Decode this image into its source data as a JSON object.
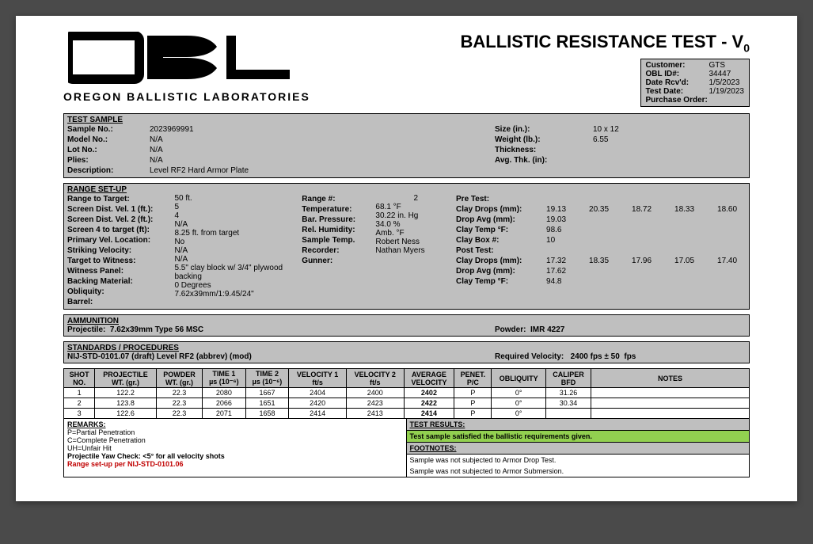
{
  "company": {
    "logo_name": "OBL",
    "logo_sub": "OREGON BALLISTIC LABORATORIES"
  },
  "title": "BALLISTIC RESISTANCE TEST - V",
  "title_sub": "0",
  "meta": {
    "customer_lbl": "Customer:",
    "customer": "GTS",
    "obl_id_lbl": "OBL ID#:",
    "obl_id": "34447",
    "date_rcvd_lbl": "Date Rcv'd:",
    "date_rcvd": "1/5/2023",
    "test_date_lbl": "Test Date:",
    "test_date": "1/19/2023",
    "po_lbl": "Purchase Order:"
  },
  "sample": {
    "title": "TEST SAMPLE",
    "sample_no_lbl": "Sample No.:",
    "sample_no": "2023969991",
    "model_lbl": "Model No.:",
    "model": "N/A",
    "lot_lbl": "Lot No.:",
    "lot": "N/A",
    "plies_lbl": "Plies:",
    "plies": "N/A",
    "desc_lbl": "Description:",
    "desc": "Level RF2 Hard Armor Plate",
    "size_lbl": "Size (in.):",
    "size": "10 x 12",
    "weight_lbl": "Weight (lb.):",
    "weight": "6.55",
    "thickness_lbl": "Thickness:",
    "avgthk_lbl": "Avg. Thk. (in):"
  },
  "range": {
    "title": "RANGE SET-UP",
    "range_target_lbl": "Range to Target:",
    "range_target": "50 ft.",
    "sd1_lbl": "Screen Dist. Vel. 1 (ft.):",
    "sd1": "5",
    "sd2_lbl": "Screen Dist. Vel. 2 (ft.):",
    "sd2": "4",
    "s4_lbl": "Screen 4 to target (ft):",
    "s4": "N/A",
    "pvl_lbl": "Primary Vel. Location:",
    "pvl": "8.25 ft. from target",
    "strike_lbl": "Striking Velocity:",
    "strike": "No",
    "witness_lbl": "Target to Witness:",
    "witness": "N/A",
    "panel_lbl": "Witness Panel:",
    "panel": "N/A",
    "backing_lbl": "Backing Material:",
    "backing": "5.5\" clay block w/ 3/4\" plywood backing",
    "obliq_lbl": "Obliquity:",
    "obliq": "0 Degrees",
    "barrel_lbl": "Barrel:",
    "barrel": "7.62x39mm/1:9.45/24\"",
    "rangeno_lbl": "Range #:",
    "rangeno": "2",
    "temp_lbl": "Temperature:",
    "temp": "68.1",
    "temp_unit": "°F",
    "bar_lbl": "Bar. Pressure:",
    "bar": "30.22",
    "bar_unit": "in. Hg",
    "hum_lbl": "Rel. Humidity:",
    "hum": "34.0",
    "hum_unit": "%",
    "sampt_lbl": "Sample Temp.",
    "sampt": "Amb.",
    "sampt_unit": "°F",
    "rec_lbl": "Recorder:",
    "rec": "Robert Ness",
    "gunner_lbl": "Gunner:",
    "gunner": "Nathan Myers",
    "pretest_lbl": "Pre Test:",
    "cdrops_lbl": "Clay Drops (mm):",
    "davg_lbl": "Drop Avg (mm):",
    "ctemp_lbl": "Clay Temp °F:",
    "cbox_lbl": "Clay Box #:",
    "posttest_lbl": "Post Test:",
    "pre_drops": [
      "19.13",
      "20.35",
      "18.72",
      "18.33",
      "18.60"
    ],
    "pre_avg": "19.03",
    "pre_temp": "98.6",
    "box": "10",
    "post_drops": [
      "17.32",
      "18.35",
      "17.96",
      "17.05",
      "17.40"
    ],
    "post_avg": "17.62",
    "post_temp": "94.8"
  },
  "ammo": {
    "title": "AMMUNITION",
    "proj_lbl": "Projectile:",
    "proj": "7.62x39mm Type 56 MSC",
    "powder_lbl": "Powder:",
    "powder": "IMR 4227"
  },
  "standards": {
    "title": "STANDARDS / PROCEDURES",
    "text": "NIJ-STD-0101.07 (draft) Level RF2 (abbrev) (mod)",
    "reqvel_lbl": "Required Velocity:",
    "reqvel": "2400 fps",
    "tol": "± 50",
    "tol_unit": "fps"
  },
  "table": {
    "headers": {
      "shot1": "SHOT",
      "shot2": "NO.",
      "projwt1": "PROJECTILE",
      "projwt2": "WT. (gr.)",
      "powwt1": "POWDER",
      "powwt2": "WT. (gr.)",
      "t1a": "TIME 1",
      "t1b": "µs (10⁻⁶)",
      "t2a": "TIME 2",
      "t2b": "µs (10⁻⁶)",
      "v1a": "VELOCITY 1",
      "v1b": "ft/s",
      "v2a": "VELOCITY 2",
      "v2b": "ft/s",
      "av1": "AVERAGE",
      "av2": "VELOCITY",
      "pen1": "PENET.",
      "pen2": "P/C",
      "obl": "OBLIQUITY",
      "cal1": "CALIPER",
      "cal2": "BFD",
      "notes": "NOTES"
    },
    "rows": [
      {
        "no": "1",
        "pw": "122.2",
        "pow": "22.3",
        "t1": "2080",
        "t2": "1667",
        "v1": "2404",
        "v2": "2400",
        "av": "2402",
        "pc": "P",
        "ob": "0°",
        "bfd": "31.26",
        "n": ""
      },
      {
        "no": "2",
        "pw": "123.8",
        "pow": "22.3",
        "t1": "2066",
        "t2": "1651",
        "v1": "2420",
        "v2": "2423",
        "av": "2422",
        "pc": "P",
        "ob": "0°",
        "bfd": "30.34",
        "n": ""
      },
      {
        "no": "3",
        "pw": "122.6",
        "pow": "22.3",
        "t1": "2071",
        "t2": "1658",
        "v1": "2414",
        "v2": "2413",
        "av": "2414",
        "pc": "P",
        "ob": "0°",
        "bfd": "",
        "n": ""
      }
    ]
  },
  "remarks": {
    "hdr": "REMARKS:",
    "p": "P=Partial Penetration",
    "c": "C=Complete Penetration",
    "uh": "UH=Unfair Hit",
    "yaw": "Projectile Yaw Check: <5° for all velocity shots",
    "setup": "Range set-up per NIJ-STD-0101.06"
  },
  "results": {
    "hdr": "TEST RESULTS:",
    "green": "Test sample satisfied the ballistic requirements given.",
    "fn_hdr": "FOOTNOTES:",
    "fn1": "Sample was not subjected to Armor Drop Test.",
    "fn2": "Sample was not subjected to Armor Submersion."
  },
  "colors": {
    "page_bg": "#ffffff",
    "section_bg": "#bfbfbf",
    "border": "#000000",
    "highlight_green": "#92d050",
    "text_red": "#c00000",
    "body_bg": "#4a4a4a"
  }
}
